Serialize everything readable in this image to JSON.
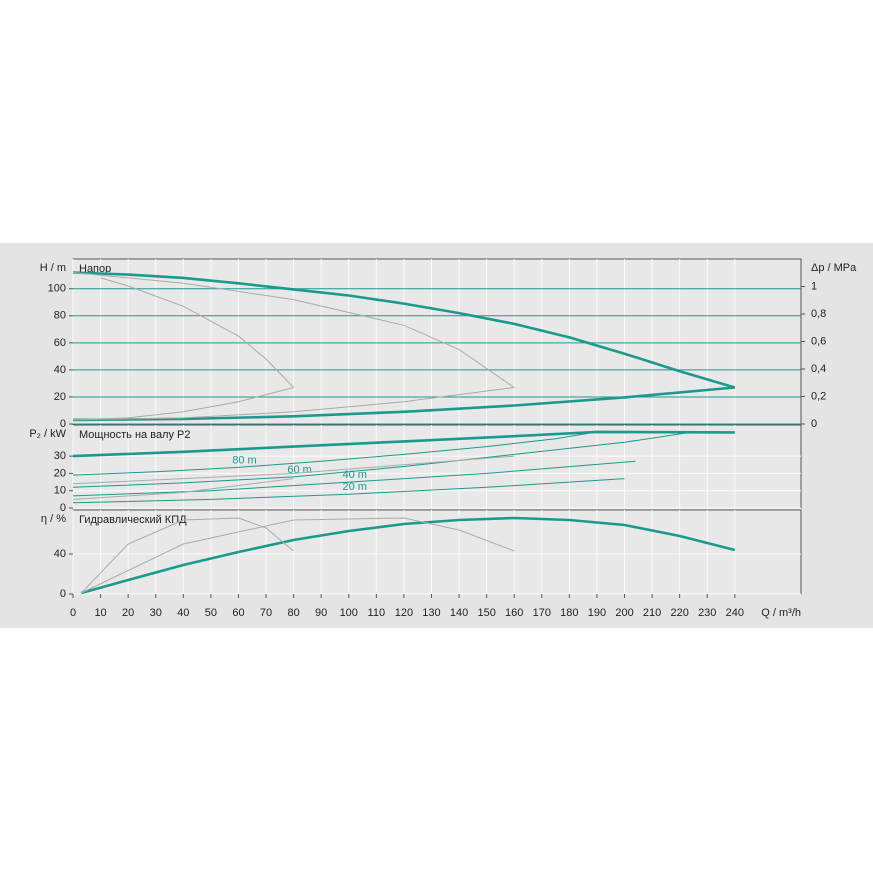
{
  "chart_data": [
    {
      "type": "line",
      "ylabel": "H / m",
      "title": "Напор",
      "y2label": "Δp / MPa",
      "ylim": [
        0,
        122
      ],
      "yticks": [
        0,
        20,
        40,
        60,
        80,
        100
      ],
      "y2lim": [
        0,
        1.2
      ],
      "y2ticks": [
        0,
        {
          "value": 0.2,
          "label": "0,2"
        },
        {
          "value": 0.4,
          "label": "0,4"
        },
        {
          "value": 0.6,
          "label": "0,6"
        },
        {
          "value": 0.8,
          "label": "0,8"
        },
        1
      ],
      "grid": true,
      "grid_color": "#1a9a8c",
      "series": [
        {
          "color": "#1a9a8c",
          "width": 2.6,
          "x": [
            0,
            20,
            40,
            60,
            80,
            100,
            120,
            140,
            160,
            180,
            200,
            220,
            240
          ],
          "values": [
            112,
            110.5,
            108,
            104,
            99.5,
            95,
            89,
            82,
            74,
            64,
            52,
            39,
            27
          ]
        },
        {
          "color": "#1a9a8c",
          "width": 2.6,
          "x": [
            0,
            40,
            80,
            120,
            160,
            200,
            240
          ],
          "values": [
            3,
            3.7,
            5.7,
            9,
            13.7,
            19.7,
            27
          ]
        },
        {
          "color": "#aaaaaa",
          "width": 1,
          "x": [
            10,
            20,
            40,
            60,
            70,
            80
          ],
          "values": [
            108,
            102,
            87,
            65,
            48,
            27
          ]
        },
        {
          "color": "#aaaaaa",
          "width": 1,
          "x": [
            0,
            40,
            80,
            120,
            140,
            160
          ],
          "values": [
            112,
            104,
            92,
            73,
            55,
            27
          ]
        },
        {
          "color": "#aaaaaa",
          "width": 1,
          "x": [
            0,
            20,
            40,
            60,
            80
          ],
          "values": [
            3,
            4.5,
            9,
            16.5,
            27
          ]
        },
        {
          "color": "#aaaaaa",
          "width": 1,
          "x": [
            0,
            40,
            80,
            120,
            160
          ],
          "values": [
            3,
            4.5,
            9,
            16.5,
            27
          ]
        }
      ]
    },
    {
      "type": "line",
      "ylabel": "P₂ / kW",
      "title": "Мощность на валу P2",
      "ylim": [
        0,
        48
      ],
      "yticks": [
        0,
        10,
        20,
        30
      ],
      "grid": true,
      "series": [
        {
          "color": "#1a9a8c",
          "width": 2.6,
          "x": [
            0,
            40,
            80,
            120,
            160,
            190,
            240
          ],
          "values": [
            30,
            32.5,
            35.5,
            38.5,
            41.5,
            44,
            43.7
          ]
        },
        {
          "name": "80 m",
          "color": "#1a9a8c",
          "width": 1,
          "x": [
            0,
            30,
            60,
            90,
            120,
            150,
            175,
            190
          ],
          "values": [
            19,
            21,
            23.5,
            27,
            31,
            35.5,
            40,
            44
          ]
        },
        {
          "name": "60 m",
          "color": "#1a9a8c",
          "width": 1,
          "x": [
            0,
            40,
            80,
            120,
            160,
            200,
            225
          ],
          "values": [
            12,
            14.5,
            18,
            24,
            31,
            38,
            44
          ]
        },
        {
          "name": "40 m",
          "color": "#1a9a8c",
          "width": 1,
          "x": [
            0,
            50,
            100,
            150,
            204
          ],
          "values": [
            7,
            10,
            15,
            20,
            27
          ]
        },
        {
          "name": "20 m",
          "color": "#1a9a8c",
          "width": 1,
          "x": [
            0,
            50,
            100,
            150,
            200
          ],
          "values": [
            3,
            5,
            8,
            12,
            17
          ]
        },
        {
          "color": "#aaaaaa",
          "width": 1,
          "x": [
            0,
            40,
            80
          ],
          "values": [
            5,
            9,
            17
          ]
        },
        {
          "color": "#aaaaaa",
          "width": 1,
          "x": [
            0,
            80,
            160
          ],
          "values": [
            14,
            20,
            30
          ]
        }
      ]
    },
    {
      "type": "line",
      "ylabel": "η / %",
      "title": "Гидравлический КПД",
      "ylim": [
        0,
        84
      ],
      "yticks": [
        0,
        40
      ],
      "grid": true,
      "xlabel": "Q / m³/h",
      "xlim": [
        0,
        264
      ],
      "xticks": [
        0,
        10,
        20,
        30,
        40,
        50,
        60,
        70,
        80,
        90,
        100,
        110,
        120,
        130,
        140,
        150,
        160,
        170,
        180,
        190,
        200,
        210,
        220,
        230,
        240
      ],
      "series": [
        {
          "color": "#1a9a8c",
          "width": 2.6,
          "x": [
            3,
            20,
            40,
            60,
            80,
            100,
            120,
            140,
            160,
            180,
            200,
            220,
            240
          ],
          "values": [
            1,
            14,
            29,
            42,
            54,
            63,
            70,
            74,
            76,
            74,
            69,
            58,
            44
          ]
        },
        {
          "color": "#aaaaaa",
          "width": 1,
          "x": [
            3,
            20,
            40,
            60,
            70,
            80
          ],
          "values": [
            1,
            50,
            74,
            76,
            66,
            43
          ]
        },
        {
          "color": "#aaaaaa",
          "width": 1,
          "x": [
            3,
            40,
            80,
            120,
            140,
            160
          ],
          "values": [
            1,
            50,
            74,
            76,
            64,
            43
          ]
        }
      ]
    }
  ]
}
